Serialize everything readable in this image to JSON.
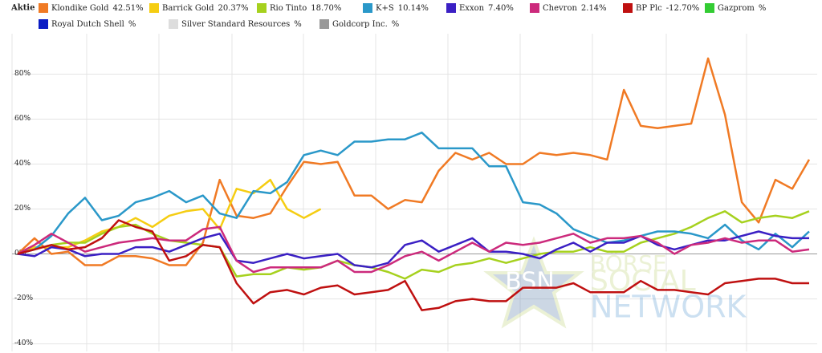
{
  "chart_data": {
    "type": "line",
    "legend_title": "Aktie",
    "categories": [
      null,
      null,
      null,
      null,
      null,
      null,
      null,
      null,
      null,
      null,
      null,
      null,
      null,
      null,
      null,
      null,
      null,
      null,
      null,
      null,
      null,
      null,
      null,
      null,
      null,
      null,
      null,
      null,
      null,
      null,
      null,
      null,
      null,
      null,
      null,
      null,
      null,
      null,
      null,
      null,
      null,
      null,
      null,
      null,
      null,
      null,
      null,
      null
    ],
    "ylim": [
      -43,
      98
    ],
    "yticks": [
      {
        "value": -40,
        "label": "-40%"
      },
      {
        "value": -20,
        "label": "-20%"
      },
      {
        "value": 0,
        "label": "0%"
      },
      {
        "value": 20,
        "label": "20%"
      },
      {
        "value": 40,
        "label": "40%"
      },
      {
        "value": 60,
        "label": "60%"
      },
      {
        "value": 80,
        "label": "80%"
      }
    ],
    "grid": true,
    "legend": "top",
    "watermark": {
      "logo": "BSN",
      "lines": [
        "BÖRSE",
        "SOCIAL",
        "NETWORK"
      ]
    },
    "series": [
      {
        "name": "Klondike Gold",
        "label": "42.51%",
        "color": "#f07a24",
        "values": [
          0,
          7,
          0,
          1,
          -5,
          -5,
          -1,
          -1,
          -2,
          -5,
          -5,
          5,
          33,
          17,
          16,
          18,
          30,
          41,
          40,
          41,
          26,
          26,
          20,
          24,
          23,
          37,
          45,
          42,
          45,
          40,
          40,
          45,
          44,
          45,
          44,
          42,
          73,
          57,
          56,
          57,
          58,
          87,
          62,
          23,
          14,
          33,
          29,
          42
        ]
      },
      {
        "name": "Barrick Gold",
        "label": "20.37%",
        "color": "#f5cd12",
        "values": [
          0,
          3,
          3,
          3,
          6,
          10,
          12,
          16,
          12,
          17,
          19,
          20,
          11,
          29,
          27,
          33,
          20,
          16,
          20,
          null,
          null,
          null,
          null,
          null,
          null,
          null,
          null,
          null,
          null,
          null,
          null,
          null,
          null,
          null,
          null,
          null,
          null,
          null,
          null,
          null,
          null,
          null,
          null,
          null,
          null,
          null,
          null,
          null
        ]
      },
      {
        "name": "Rio Tinto",
        "label": "18.70%",
        "color": "#a6d11e",
        "values": [
          0,
          2,
          4,
          5,
          5,
          9,
          12,
          13,
          9,
          6,
          5,
          4,
          3,
          -10,
          -9,
          -9,
          -6,
          -7,
          -6,
          -3,
          -5,
          -6,
          -8,
          -11,
          -7,
          -8,
          -5,
          -4,
          -2,
          -4,
          -2,
          0,
          1,
          1,
          3,
          1,
          1,
          5,
          7,
          9,
          12,
          16,
          19,
          14,
          16,
          17,
          16,
          19
        ]
      },
      {
        "name": "K+S",
        "label": "10.14%",
        "color": "#2a98c9",
        "values": [
          0,
          2,
          8,
          18,
          25,
          15,
          17,
          23,
          25,
          28,
          23,
          26,
          18,
          16,
          28,
          27,
          32,
          44,
          46,
          44,
          50,
          50,
          51,
          51,
          54,
          47,
          47,
          47,
          39,
          39,
          23,
          22,
          18,
          11,
          8,
          5,
          6,
          8,
          10,
          10,
          9,
          7,
          13,
          6,
          2,
          9,
          3,
          10
        ]
      },
      {
        "name": "Exxon",
        "label": "7.40%",
        "color": "#3b20c4",
        "values": [
          0,
          -1,
          3,
          2,
          -1,
          0,
          0,
          3,
          3,
          1,
          4,
          7,
          9,
          -3,
          -4,
          -2,
          0,
          -2,
          -1,
          0,
          -5,
          -6,
          -4,
          4,
          6,
          1,
          4,
          7,
          1,
          1,
          0,
          -2,
          2,
          5,
          1,
          5,
          5,
          8,
          4,
          2,
          4,
          6,
          6,
          8,
          10,
          8,
          7,
          7
        ]
      },
      {
        "name": "Chevron",
        "label": "2.14%",
        "color": "#cc2a7c",
        "values": [
          0,
          4,
          9,
          5,
          1,
          3,
          5,
          6,
          7,
          6,
          6,
          11,
          12,
          -3,
          -8,
          -6,
          -6,
          -6,
          -6,
          -3,
          -8,
          -8,
          -5,
          -1,
          1,
          -3,
          1,
          5,
          1,
          5,
          4,
          5,
          7,
          9,
          5,
          7,
          7,
          8,
          5,
          0,
          4,
          5,
          7,
          5,
          6,
          6,
          1,
          2
        ]
      },
      {
        "name": "BP Plc",
        "label": "-12.70%",
        "color": "#bf1010",
        "values": [
          0,
          2,
          4,
          2,
          3,
          7,
          15,
          12,
          10,
          -3,
          -1,
          4,
          3,
          -13,
          -22,
          -17,
          -16,
          -18,
          -15,
          -14,
          -18,
          -17,
          -16,
          -12,
          -25,
          -24,
          -21,
          -20,
          -21,
          -21,
          -15,
          -15,
          -15,
          -13,
          -17,
          -17,
          -17,
          -12,
          -16,
          -16,
          -17,
          -18,
          -13,
          -12,
          -11,
          -11,
          -13,
          -13
        ]
      },
      {
        "name": "Gazprom",
        "label": "%",
        "color": "#33cc33",
        "values": [
          null,
          null,
          null,
          null,
          null,
          null,
          null,
          null,
          null,
          null,
          null,
          null,
          null,
          null,
          null,
          null,
          null,
          null,
          null,
          null,
          null,
          null,
          null,
          null,
          null,
          null,
          null,
          null,
          null,
          null,
          null,
          null,
          null,
          null,
          null,
          null,
          null,
          null,
          null,
          null,
          null,
          null,
          null,
          null,
          null,
          null,
          null,
          null
        ]
      },
      {
        "name": "Royal Dutch Shell",
        "label": "%",
        "color": "#0a1cc4",
        "values": [
          null,
          null,
          null,
          null,
          null,
          null,
          null,
          null,
          null,
          null,
          null,
          null,
          null,
          null,
          null,
          null,
          null,
          null,
          null,
          null,
          null,
          null,
          null,
          null,
          null,
          null,
          null,
          null,
          null,
          null,
          null,
          null,
          null,
          null,
          null,
          null,
          null,
          null,
          null,
          null,
          null,
          null,
          null,
          null,
          null,
          null,
          null,
          null
        ]
      },
      {
        "name": "Silver Standard Resources",
        "label": "%",
        "color": "#dddddd",
        "values": [
          null,
          null,
          null,
          null,
          null,
          null,
          null,
          null,
          null,
          null,
          null,
          null,
          null,
          null,
          null,
          null,
          null,
          null,
          null,
          null,
          null,
          null,
          null,
          null,
          null,
          null,
          null,
          null,
          null,
          null,
          null,
          null,
          null,
          null,
          null,
          null,
          null,
          null,
          null,
          null,
          null,
          null,
          null,
          null,
          null,
          null,
          null,
          null
        ]
      },
      {
        "name": "Goldcorp Inc.",
        "label": "%",
        "color": "#999999",
        "values": [
          null,
          null,
          null,
          null,
          null,
          null,
          null,
          null,
          null,
          null,
          null,
          null,
          null,
          null,
          null,
          null,
          null,
          null,
          null,
          null,
          null,
          null,
          null,
          null,
          null,
          null,
          null,
          null,
          null,
          null,
          null,
          null,
          null,
          null,
          null,
          null,
          null,
          null,
          null,
          null,
          null,
          null,
          null,
          null,
          null,
          null,
          null,
          null
        ]
      }
    ]
  }
}
